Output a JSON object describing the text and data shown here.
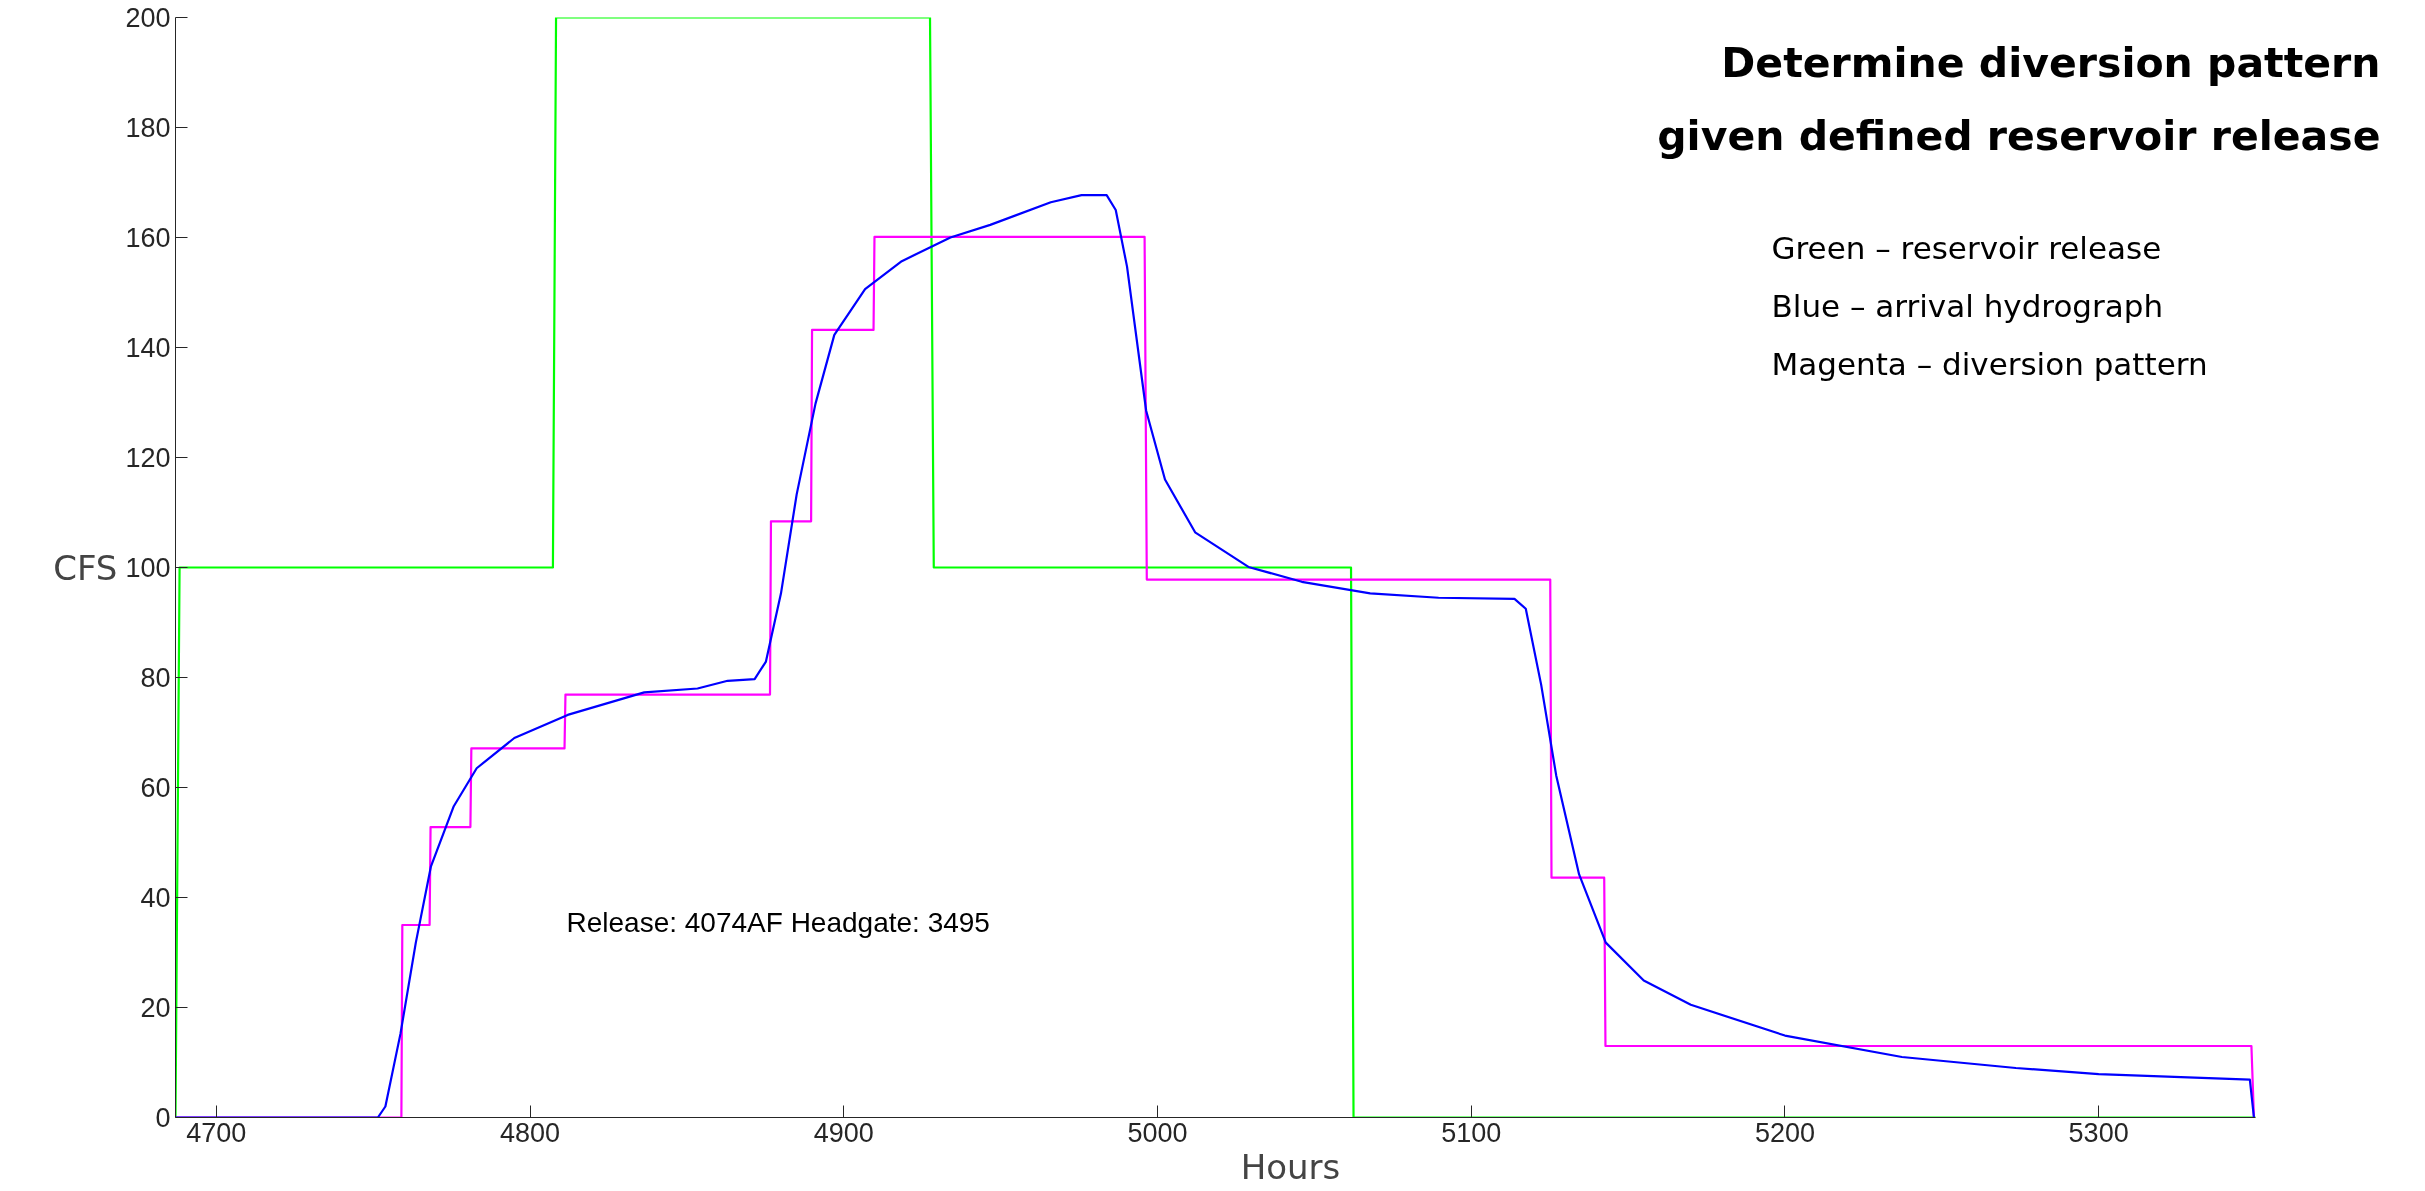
{
  "chart_data": {
    "type": "line",
    "title": "Determine diversion pattern\ngiven defined reservoir release",
    "xlabel": "Hours",
    "ylabel": "CFS",
    "series": [
      {
        "color": "#00ff00",
        "x": [
          4687,
          4688.3,
          4807.3,
          4808.3,
          4927.5,
          4928.7,
          5061.7,
          5062.5,
          5350
        ],
        "values": [
          0,
          100,
          100,
          200,
          200,
          100,
          100,
          0,
          0
        ]
      },
      {
        "color": "#ff00ff",
        "x": [
          4687,
          4759,
          4759.3,
          4768,
          4768.3,
          4781,
          4781.3,
          4811,
          4811.3,
          4876.5,
          4876.8,
          4889.6,
          4889.9,
          4909.5,
          4909.8,
          4995.9,
          4996.6,
          5125.2,
          5125.6,
          5142.4,
          5142.8,
          5348.7,
          5349.5
        ],
        "values": [
          0,
          0,
          35,
          35,
          52.8,
          52.8,
          67.1,
          67.1,
          76.9,
          76.9,
          108.4,
          108.4,
          143.2,
          143.2,
          160.1,
          160.1,
          97.8,
          97.8,
          43.6,
          43.6,
          13,
          13,
          0
        ]
      },
      {
        "color": "#0000ff",
        "x": [
          4687,
          4751.5,
          4753.9,
          4758.7,
          4763.6,
          4768.4,
          4775.7,
          4783,
          4795,
          4812,
          4836.4,
          4853.4,
          4863,
          4871.6,
          4875.2,
          4880,
          4885,
          4891,
          4897,
          4906.8,
          4918.5,
          4934,
          4946.7,
          4966,
          4975.8,
          4983.8,
          4986.7,
          4990.3,
          4996.4,
          5002.4,
          5012,
          5029,
          5046,
          5067.8,
          5089.6,
          5113.8,
          5117.4,
          5122.3,
          5127.1,
          5134.4,
          5142.9,
          5155,
          5170,
          5200,
          5237.3,
          5273.6,
          5300,
          5348.2,
          5349.5
        ],
        "values": [
          0,
          0,
          2,
          15.2,
          31.8,
          45.6,
          56.6,
          63.5,
          69,
          73.2,
          77.3,
          78,
          79.4,
          79.7,
          82.9,
          95.3,
          113.3,
          129.8,
          142.3,
          150.6,
          155.7,
          160,
          162.3,
          166.4,
          167.7,
          167.7,
          165,
          154.7,
          128.5,
          116,
          106.4,
          100.1,
          97.4,
          95.3,
          94.5,
          94.3,
          92.5,
          78.7,
          62.2,
          44.2,
          31.8,
          24.9,
          20.5,
          14.9,
          11,
          9,
          7.9,
          6.9,
          0
        ]
      }
    ],
    "xlim": [
      4687,
      5350
    ],
    "ylim": [
      0,
      200
    ],
    "xticks": [
      4700,
      4800,
      4900,
      5000,
      5100,
      5200,
      5300
    ],
    "yticks": [
      0,
      20,
      40,
      60,
      80,
      100,
      120,
      140,
      160,
      180,
      200
    ],
    "grid": false,
    "marker": "none",
    "line_style": "solid",
    "annotations": [
      "Release: 4074AF Headgate: 3495",
      "Green – reservoir release",
      "Blue –    arrival hydrograph",
      "Magenta – diversion pattern"
    ]
  }
}
